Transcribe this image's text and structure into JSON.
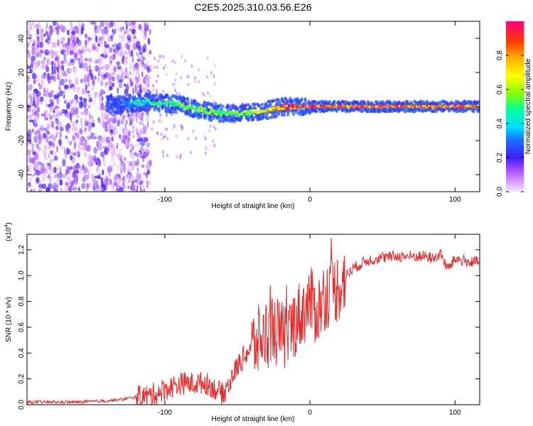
{
  "title": "C2E5.2025.310.03.56.E26",
  "chart_data": [
    {
      "type": "heatmap",
      "xlabel": "Height of straight line (km)",
      "ylabel": "Frequency (Hz)",
      "xlim": [
        -195,
        117
      ],
      "ylim": [
        -50,
        50
      ],
      "xticks": [
        -100,
        0,
        100
      ],
      "xtick_labels": [
        "-100",
        "0",
        "100"
      ],
      "yticks": [
        -40,
        -20,
        0,
        20,
        40
      ],
      "ytick_labels": [
        "-40",
        "-20",
        "0",
        "20",
        "40"
      ],
      "colorbar": {
        "label": "Normalized spectral amplitude",
        "range": [
          0,
          1
        ],
        "ticks": [
          0.0,
          0.2,
          0.4,
          0.6,
          0.8
        ],
        "tick_labels": [
          "0.0",
          "0.2",
          "0.4",
          "0.6",
          "0.8"
        ]
      },
      "ridge": {
        "heights": [
          -130,
          -120,
          -110,
          -100,
          -90,
          -80,
          -70,
          -60,
          -50,
          -40,
          -30,
          -20,
          -10,
          0,
          10,
          20,
          40,
          60,
          80,
          100,
          117
        ],
        "frequency": [
          1,
          2.5,
          2.5,
          2,
          1,
          -1,
          -3,
          -4,
          -4,
          -3.5,
          -2,
          -0.5,
          0,
          0,
          0,
          0,
          0,
          0,
          0,
          0,
          0
        ],
        "amplitude": [
          0.3,
          0.45,
          0.5,
          0.5,
          0.55,
          0.6,
          0.6,
          0.55,
          0.6,
          0.65,
          0.75,
          0.85,
          0.95,
          0.95,
          0.95,
          0.95,
          0.9,
          0.9,
          0.9,
          0.9,
          0.85
        ]
      }
    },
    {
      "type": "line",
      "xlabel": "Height of straight line (km)",
      "ylabel": "SNR (10 * v/v)",
      "multiplier_label": "(x10",
      "multiplier_exp": "4",
      "multiplier_close": ")",
      "xlim": [
        -195,
        117
      ],
      "ylim": [
        0,
        1.32
      ],
      "xticks": [
        -100,
        0,
        100
      ],
      "xtick_labels": [
        "-100",
        "0",
        "100"
      ],
      "yticks": [
        0.0,
        0.2,
        0.4,
        0.6,
        0.8,
        1.0,
        1.2
      ],
      "ytick_labels": [
        "0.0",
        "0.2",
        "0.4",
        "0.6",
        "0.8",
        "1.0",
        "1.2"
      ],
      "series": [
        {
          "name": "SNR",
          "color": "#e82a2a",
          "x": [
            -195,
            -180,
            -160,
            -140,
            -130,
            -120,
            -110,
            -100,
            -95,
            -90,
            -85,
            -80,
            -75,
            -70,
            -65,
            -60,
            -55,
            -50,
            -45,
            -40,
            -35,
            -30,
            -25,
            -20,
            -15,
            -10,
            -5,
            0,
            5,
            10,
            15,
            20,
            25,
            30,
            40,
            50,
            60,
            70,
            80,
            85,
            90,
            95,
            100,
            105,
            110,
            117
          ],
          "y": [
            0.02,
            0.02,
            0.02,
            0.03,
            0.04,
            0.06,
            0.07,
            0.12,
            0.14,
            0.16,
            0.17,
            0.16,
            0.17,
            0.16,
            0.12,
            0.08,
            0.18,
            0.3,
            0.38,
            0.45,
            0.5,
            0.55,
            0.6,
            0.52,
            0.55,
            0.65,
            0.72,
            0.8,
            0.72,
            0.85,
            0.88,
            0.92,
            1.0,
            1.06,
            1.12,
            1.14,
            1.15,
            1.15,
            1.15,
            1.13,
            1.17,
            1.05,
            1.13,
            1.12,
            1.1,
            1.11
          ]
        }
      ]
    }
  ]
}
